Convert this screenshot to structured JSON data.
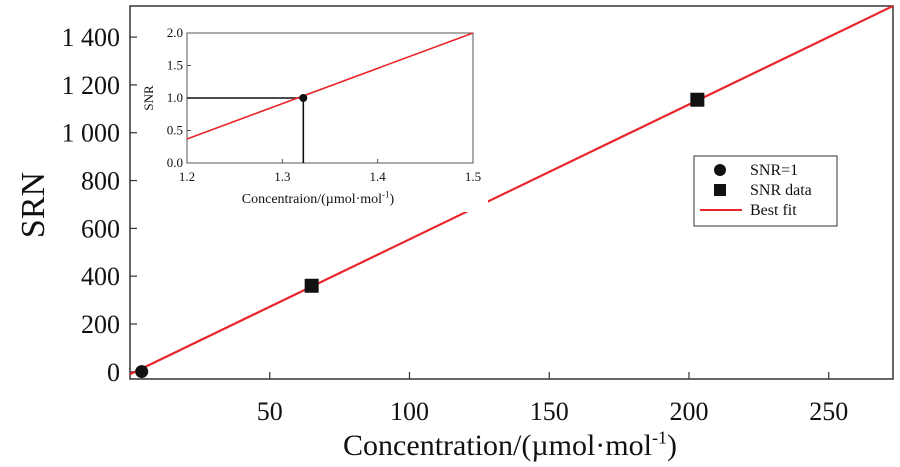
{
  "chart_data": [
    {
      "id": "main",
      "type": "scatter",
      "xlabel": "Concentration/(µmol·mol",
      "xlabel_sup": "-1",
      "xlabel_close": ")",
      "ylabel": "SRN",
      "xlim": [
        0,
        273
      ],
      "ylim": [
        -30,
        1530
      ],
      "x_ticks": [
        50,
        100,
        150,
        200,
        250
      ],
      "x_tick_labels": [
        "50",
        "100",
        "150",
        "200",
        "250"
      ],
      "y_ticks": [
        0,
        200,
        400,
        600,
        800,
        1000,
        1200,
        1400
      ],
      "y_tick_labels": [
        "0",
        "200",
        "400",
        "600",
        "800",
        "1 000",
        "1 200",
        "1 400"
      ],
      "grid": false,
      "legend_position": "right",
      "series": [
        {
          "name": "SNR=1",
          "kind": "circle",
          "color": "#111111",
          "points": [
            [
              1.32,
              1
            ]
          ]
        },
        {
          "name": "SNR data",
          "kind": "square",
          "color": "#111111",
          "points": [
            [
              65,
              360
            ],
            [
              203,
              1138
            ]
          ]
        },
        {
          "name": "Best fit",
          "kind": "line",
          "color": "#e8262b",
          "points": [
            [
              0,
              -10
            ],
            [
              273,
              1530
            ]
          ]
        }
      ]
    },
    {
      "id": "inset",
      "type": "line",
      "xlabel": "Concentraion/(µmol·mol",
      "xlabel_sup": "-1",
      "xlabel_close": ")",
      "ylabel": "SNR",
      "xlim": [
        1.2,
        1.5
      ],
      "ylim": [
        0,
        2
      ],
      "x_ticks": [
        1.2,
        1.3,
        1.4,
        1.5
      ],
      "x_tick_labels": [
        "1.2",
        "1.3",
        "1.4",
        "1.5"
      ],
      "y_ticks": [
        0,
        0.5,
        1.0,
        1.5,
        2.0
      ],
      "y_tick_labels": [
        "0.0",
        "0.5",
        "1.0",
        "1.5",
        "2.0"
      ],
      "grid": false,
      "series": [
        {
          "name": "Best fit",
          "kind": "line",
          "color": "#e8262b",
          "points": [
            [
              1.2,
              0.37
            ],
            [
              1.5,
              2.0
            ]
          ]
        },
        {
          "name": "SNR=1",
          "kind": "circle",
          "color": "#111111",
          "points": [
            [
              1.322,
              1.0
            ]
          ]
        }
      ],
      "guide_lines": {
        "x": 1.322,
        "y": 1.0,
        "color": "#111111"
      }
    }
  ]
}
